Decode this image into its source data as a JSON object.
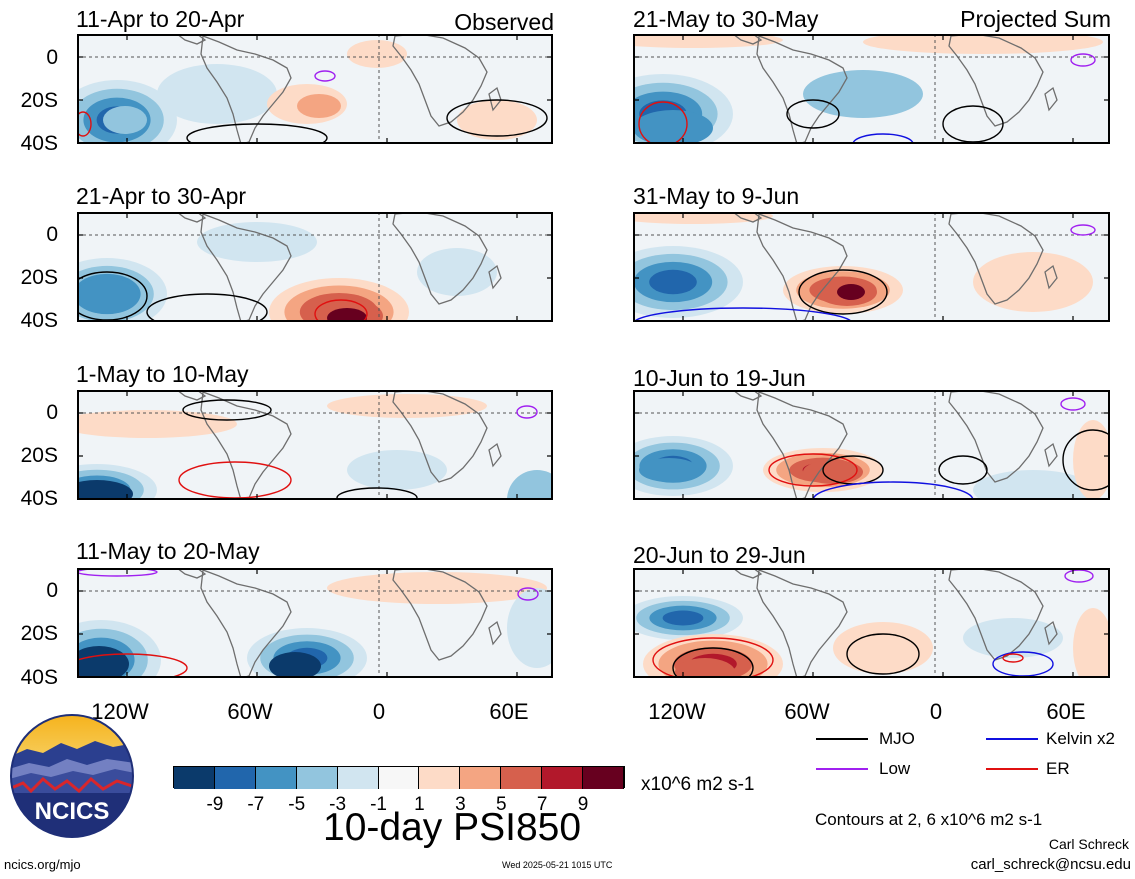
{
  "left_column": {
    "tag": "Observed",
    "panels": [
      {
        "title": "11-Apr to 20-Apr"
      },
      {
        "title": "21-Apr to 30-Apr"
      },
      {
        "title": "1-May to 10-May"
      },
      {
        "title": "11-May to 20-May"
      }
    ]
  },
  "right_column": {
    "tag": "Projected Sum",
    "panels": [
      {
        "title": "21-May to 30-May"
      },
      {
        "title": "31-May to 9-Jun"
      },
      {
        "title": "10-Jun to 19-Jun"
      },
      {
        "title": "20-Jun to 29-Jun"
      }
    ]
  },
  "lat_labels": [
    "0",
    "20S",
    "40S"
  ],
  "lon_labels": [
    "120W",
    "60W",
    "0",
    "60E"
  ],
  "legend": {
    "items": [
      {
        "label": "MJO",
        "color": "#000000"
      },
      {
        "label": "Kelvin x2",
        "color": "#1010e0"
      },
      {
        "label": "Low",
        "color": "#a020f0"
      },
      {
        "label": "ER",
        "color": "#e01010"
      }
    ],
    "contours_note": "Contours at 2, 6 x10^6 m2 s-1"
  },
  "colorbar": {
    "colors": [
      "#0b3a6b",
      "#2166ac",
      "#4393c3",
      "#92c5de",
      "#d1e5f0",
      "#f7f7f7",
      "#fddbc7",
      "#f4a582",
      "#d6604d",
      "#b2182b",
      "#67001f"
    ],
    "labels": [
      "-9",
      "-7",
      "-5",
      "-3",
      "-1",
      "1",
      "3",
      "5",
      "7",
      "9"
    ],
    "units": "x10^6 m2 s-1"
  },
  "figure_title": "10-day PSI850",
  "logo_text": "NCICS",
  "footer": {
    "url": "ncics.org/mjo",
    "timestamp": "Wed 2025-05-21 1015 UTC",
    "author": "Carl Schreck",
    "email": "carl_schreck@ncsu.edu"
  }
}
